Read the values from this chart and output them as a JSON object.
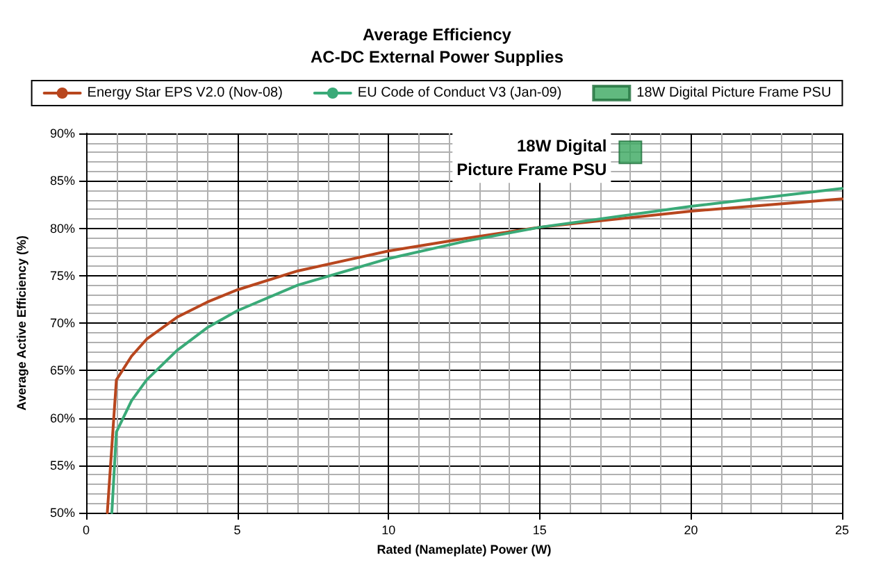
{
  "chart_data": {
    "type": "line",
    "title": "Average Efficiency",
    "subtitle": "AC-DC External Power Supplies",
    "xlabel": "Rated (Nameplate) Power (W)",
    "ylabel": "Average Active Efficiency (%)",
    "series": [
      {
        "name": "Energy Star EPS V2.0 (Nov-08)",
        "color": "#b8461e",
        "x": [
          0.7,
          1,
          1.5,
          2,
          3,
          4,
          5,
          7,
          10,
          12.5,
          15,
          20,
          25
        ],
        "values": [
          50,
          64,
          66.5,
          68.3,
          70.6,
          72.2,
          73.5,
          75.5,
          77.6,
          78.9,
          80.1,
          81.8,
          83.1
        ]
      },
      {
        "name": "EU Code of Conduct V3 (Jan-09)",
        "color": "#3aaa78",
        "x": [
          0.85,
          1,
          1.5,
          2,
          3,
          4,
          5,
          7,
          10,
          12.5,
          15,
          20,
          25
        ],
        "values": [
          50,
          58.5,
          61.8,
          64,
          67.1,
          69.5,
          71.3,
          74,
          76.8,
          78.6,
          80.1,
          82.3,
          84.2
        ]
      },
      {
        "name": "18W Digital Picture Frame PSU",
        "type": "scatter",
        "marker": "square",
        "color": "#3aa85f",
        "x": [
          18
        ],
        "values": [
          88
        ]
      }
    ],
    "xlim": [
      0,
      25
    ],
    "xticks": [
      0,
      5,
      10,
      15,
      20,
      25
    ],
    "ylim": [
      50,
      90
    ],
    "yticks": [
      {
        "value": 50,
        "label": "50%"
      },
      {
        "value": 55,
        "label": "55%"
      },
      {
        "value": 60,
        "label": "60%"
      },
      {
        "value": 65,
        "label": "65%"
      },
      {
        "value": 70,
        "label": "70%"
      },
      {
        "value": 75,
        "label": "75%"
      },
      {
        "value": 80,
        "label": "80%"
      },
      {
        "value": 85,
        "label": "85%"
      },
      {
        "value": 90,
        "label": "90%"
      }
    ],
    "grid": true,
    "legend": "top",
    "line_style": "solid",
    "marker": "none",
    "annotations": [
      {
        "text": "18W Digital\nPicture Frame PSU",
        "x": 18,
        "y": 88
      }
    ]
  }
}
